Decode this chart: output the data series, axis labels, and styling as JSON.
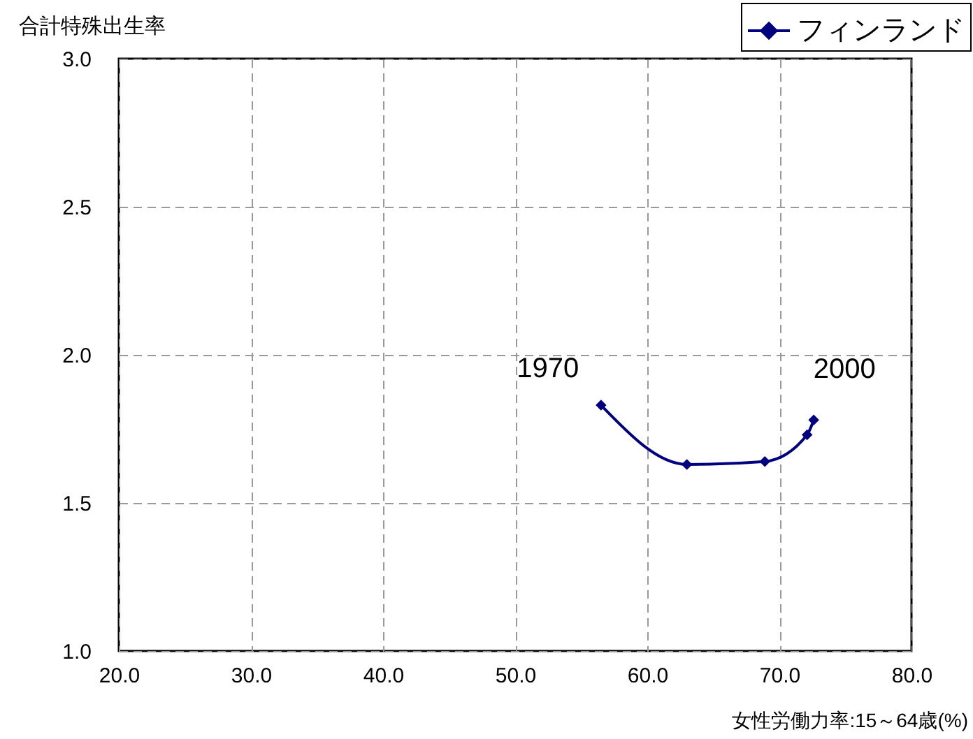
{
  "chart_data": {
    "type": "line",
    "xlabel": "女性労働力率:15～64歳(%)",
    "ylabel": "合計特殊出生率",
    "x": [
      56.5,
      63.0,
      68.9,
      72.1,
      72.6
    ],
    "series": [
      {
        "name": "フィンランド",
        "color": "#000080",
        "values": [
          1.83,
          1.63,
          1.64,
          1.73,
          1.78
        ]
      }
    ],
    "xlim": [
      20,
      80
    ],
    "xticks": [
      {
        "value": 20,
        "label": "20.0"
      },
      {
        "value": 30,
        "label": "30.0"
      },
      {
        "value": 40,
        "label": "40.0"
      },
      {
        "value": 50,
        "label": "50.0"
      },
      {
        "value": 60,
        "label": "60.0"
      },
      {
        "value": 70,
        "label": "70.0"
      },
      {
        "value": 80,
        "label": "80.0"
      }
    ],
    "ylim": [
      1,
      3
    ],
    "yticks": [
      {
        "value": 1,
        "label": "1.0"
      },
      {
        "value": 1.5,
        "label": "1.5"
      },
      {
        "value": 2,
        "label": "2.0"
      },
      {
        "value": 2.5,
        "label": "2.5"
      },
      {
        "value": 3,
        "label": "3.0"
      }
    ],
    "annotations": [
      {
        "text": "1970",
        "x": 56.5,
        "y": 1.83
      },
      {
        "text": "2000",
        "x": 72.6,
        "y": 1.78
      }
    ],
    "grid": true,
    "legend": "top right",
    "marker": "diamond",
    "line_style": "solid"
  }
}
